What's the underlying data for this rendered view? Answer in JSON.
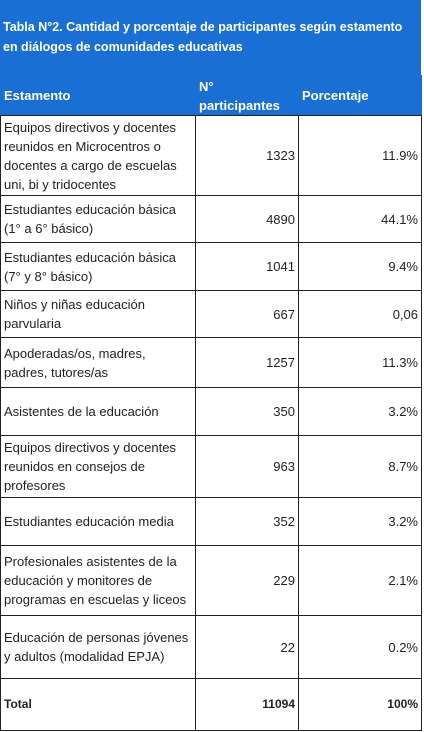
{
  "header": {
    "title": "Tabla N°2. Cantidad y porcentaje de participantes según estamento en diálogos de comunidades educativas"
  },
  "table": {
    "columns": [
      "Estamento",
      "N° participantes",
      "Porcentaje"
    ],
    "rows": [
      [
        "Equipos directivos y docentes reunidos en Microcentros o docentes a cargo de escuelas uni, bi y tridocentes",
        "1323",
        "11.9%"
      ],
      [
        "Estudiantes educación básica (1° a 6° básico)",
        "4890",
        "44.1%"
      ],
      [
        "Estudiantes educación básica (7° y 8° básico)",
        "1041",
        "9.4%"
      ],
      [
        "Niños y niñas educación parvularia",
        "667",
        "0,06"
      ],
      [
        "Apoderadas/os, madres, padres, tutores/as",
        "1257",
        "11.3%"
      ],
      [
        "Asistentes de la educación",
        "350",
        "3.2%"
      ],
      [
        "Equipos directivos y docentes reunidos en consejos de profesores",
        "963",
        "8.7%"
      ],
      [
        "Estudiantes educación media",
        "352",
        "3.2%"
      ],
      [
        "Profesionales asistentes de la educación y monitores de programas en escuelas y liceos",
        "229",
        "2.1%"
      ],
      [
        "Educación de personas jóvenes y adultos (modalidad EPJA)",
        "22",
        "0.2%"
      ]
    ],
    "total": [
      "Total",
      "11094",
      "100%"
    ]
  }
}
